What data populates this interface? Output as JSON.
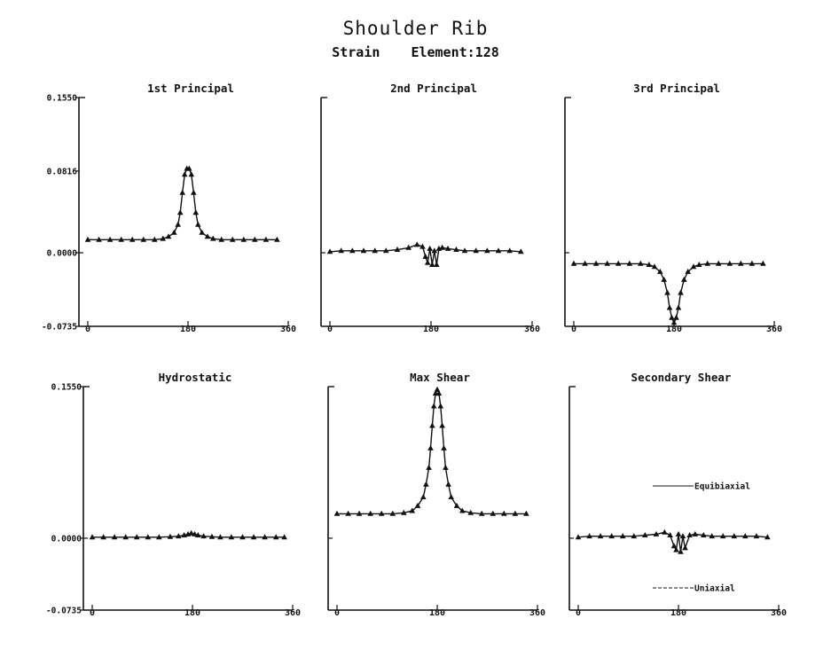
{
  "figure": {
    "title": "Shoulder Rib",
    "subtitle_left": "Strain",
    "subtitle_right": "Element:128"
  },
  "chart_data": [
    {
      "type": "line",
      "title": "1st Principal",
      "xlim": [
        0,
        360
      ],
      "ylim": [
        -0.0735,
        0.155
      ],
      "xticks": [
        "0",
        "180",
        "360"
      ],
      "yticks": [
        "-0.0735",
        "0.0000",
        "0.0816",
        "0.1550"
      ],
      "series": [
        {
          "x": [
            0,
            20,
            40,
            60,
            80,
            100,
            120,
            135,
            145,
            155,
            162,
            166,
            170,
            174,
            178,
            182,
            186,
            190,
            194,
            198,
            205,
            215,
            225,
            240,
            260,
            280,
            300,
            320,
            340
          ],
          "y": [
            0.013,
            0.013,
            0.013,
            0.013,
            0.013,
            0.013,
            0.013,
            0.014,
            0.016,
            0.02,
            0.028,
            0.04,
            0.06,
            0.078,
            0.084,
            0.084,
            0.078,
            0.06,
            0.04,
            0.028,
            0.02,
            0.016,
            0.014,
            0.013,
            0.013,
            0.013,
            0.013,
            0.013,
            0.013
          ]
        }
      ]
    },
    {
      "type": "line",
      "title": "2nd Principal",
      "xlim": [
        0,
        360
      ],
      "ylim": [
        -0.0735,
        0.155
      ],
      "xticks": [
        "0",
        "180",
        "360"
      ],
      "yticks": [],
      "series": [
        {
          "x": [
            0,
            20,
            40,
            60,
            80,
            100,
            120,
            140,
            155,
            165,
            170,
            174,
            178,
            182,
            186,
            190,
            194,
            200,
            210,
            225,
            240,
            260,
            280,
            300,
            320,
            340
          ],
          "y": [
            0.001,
            0.002,
            0.002,
            0.002,
            0.002,
            0.002,
            0.003,
            0.005,
            0.008,
            0.006,
            -0.004,
            -0.01,
            0.004,
            -0.012,
            0.002,
            -0.012,
            0.004,
            0.005,
            0.004,
            0.003,
            0.002,
            0.002,
            0.002,
            0.002,
            0.002,
            0.001
          ]
        }
      ]
    },
    {
      "type": "line",
      "title": "3rd Principal",
      "xlim": [
        0,
        360
      ],
      "ylim": [
        -0.0735,
        0.155
      ],
      "xticks": [
        "0",
        "180",
        "360"
      ],
      "yticks": [],
      "series": [
        {
          "x": [
            0,
            20,
            40,
            60,
            80,
            100,
            120,
            135,
            145,
            155,
            162,
            168,
            172,
            176,
            180,
            184,
            188,
            192,
            198,
            205,
            215,
            225,
            240,
            260,
            280,
            300,
            320,
            340
          ],
          "y": [
            -0.011,
            -0.011,
            -0.011,
            -0.011,
            -0.011,
            -0.011,
            -0.011,
            -0.012,
            -0.014,
            -0.019,
            -0.027,
            -0.04,
            -0.055,
            -0.065,
            -0.07,
            -0.065,
            -0.055,
            -0.04,
            -0.027,
            -0.019,
            -0.014,
            -0.012,
            -0.011,
            -0.011,
            -0.011,
            -0.011,
            -0.011,
            -0.011
          ]
        }
      ]
    },
    {
      "type": "line",
      "title": "Hydrostatic",
      "xlim": [
        0,
        360
      ],
      "ylim": [
        -0.0735,
        0.155
      ],
      "xticks": [
        "0",
        "180",
        "360"
      ],
      "yticks": [
        "-0.0735",
        "0.0000",
        "0.1550"
      ],
      "series": [
        {
          "x": [
            0,
            20,
            40,
            60,
            80,
            100,
            120,
            140,
            155,
            165,
            172,
            178,
            184,
            190,
            200,
            215,
            230,
            250,
            270,
            290,
            310,
            330,
            345
          ],
          "y": [
            0.001,
            0.001,
            0.001,
            0.001,
            0.001,
            0.001,
            0.001,
            0.0015,
            0.002,
            0.003,
            0.004,
            0.005,
            0.004,
            0.003,
            0.002,
            0.0015,
            0.001,
            0.001,
            0.001,
            0.001,
            0.001,
            0.001,
            0.001
          ]
        }
      ]
    },
    {
      "type": "line",
      "title": "Max Shear",
      "xlim": [
        0,
        360
      ],
      "ylim": [
        -0.0735,
        0.155
      ],
      "xticks": [
        "0",
        "180",
        "360"
      ],
      "yticks": [],
      "series": [
        {
          "x": [
            0,
            20,
            40,
            60,
            80,
            100,
            120,
            135,
            145,
            155,
            160,
            165,
            168,
            171,
            174,
            177,
            180,
            183,
            186,
            189,
            192,
            195,
            200,
            205,
            215,
            225,
            240,
            260,
            280,
            300,
            320,
            340
          ],
          "y": [
            0.025,
            0.025,
            0.025,
            0.025,
            0.025,
            0.025,
            0.026,
            0.028,
            0.033,
            0.042,
            0.055,
            0.072,
            0.092,
            0.115,
            0.135,
            0.148,
            0.152,
            0.148,
            0.135,
            0.115,
            0.092,
            0.072,
            0.055,
            0.042,
            0.033,
            0.028,
            0.026,
            0.025,
            0.025,
            0.025,
            0.025,
            0.025
          ]
        }
      ]
    },
    {
      "type": "line",
      "title": "Secondary Shear",
      "xlim": [
        0,
        360
      ],
      "ylim": [
        -0.0735,
        0.155
      ],
      "xticks": [
        "0",
        "180",
        "360"
      ],
      "yticks": [],
      "legend": [
        "Equibiaxial",
        "Uniaxial"
      ],
      "series": [
        {
          "x": [
            0,
            20,
            40,
            60,
            80,
            100,
            120,
            140,
            155,
            165,
            172,
            176,
            180,
            184,
            188,
            192,
            200,
            210,
            225,
            240,
            260,
            280,
            300,
            320,
            340
          ],
          "y": [
            0.001,
            0.002,
            0.002,
            0.002,
            0.002,
            0.002,
            0.003,
            0.004,
            0.006,
            0.003,
            -0.008,
            -0.012,
            0.004,
            -0.014,
            0.002,
            -0.01,
            0.003,
            0.004,
            0.003,
            0.002,
            0.002,
            0.002,
            0.002,
            0.002,
            0.001
          ]
        }
      ]
    }
  ]
}
